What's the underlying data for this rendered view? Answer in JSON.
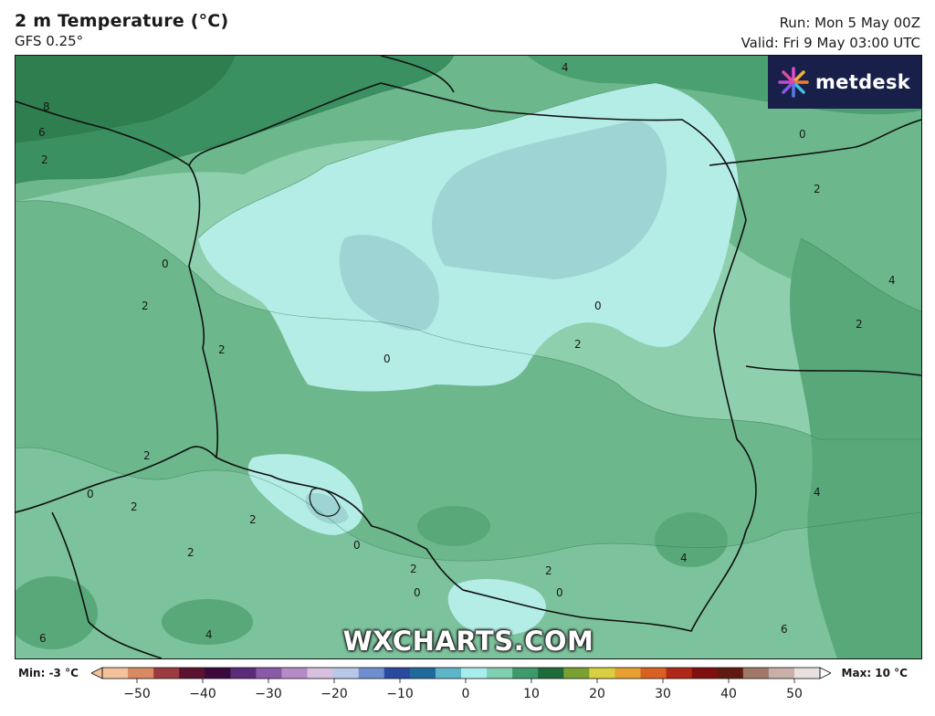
{
  "header": {
    "title": "2 m Temperature (°C)",
    "subtitle": "GFS 0.25°",
    "run": "Run: Mon 5 May 00Z",
    "valid": "Valid: Fri 9 May 03:00 UTC"
  },
  "logo": {
    "text": "metdesk"
  },
  "watermark": "WXCHARTS.COM",
  "contour_labels": [
    "8",
    "6",
    "2",
    "0",
    "2",
    "2",
    "0",
    "2",
    "4",
    "0",
    "2",
    "4",
    "2",
    "0",
    "2",
    "2",
    "4",
    "0",
    "0",
    "2",
    "0",
    "4",
    "6",
    "6",
    "4",
    "2",
    "0",
    "2",
    "2"
  ],
  "colorbar": {
    "min_label": "Min: -3 °C",
    "max_label": "Max: 10 °C",
    "ticks": [
      "−50",
      "−40",
      "−30",
      "−20",
      "−10",
      "0",
      "10",
      "20",
      "30",
      "40",
      "50"
    ],
    "colors": [
      "#f2c29a",
      "#d98a62",
      "#9a3b40",
      "#5a1230",
      "#3a0a3c",
      "#5b2a78",
      "#8a5aa8",
      "#b68cc8",
      "#d8c0e0",
      "#b8c8e8",
      "#6e8ed0",
      "#2a4aa0",
      "#1f6a9a",
      "#5cb6c8",
      "#a8ecec",
      "#7fd0b0",
      "#3e9a6a",
      "#1e6a3a",
      "#7aa030",
      "#d8d040",
      "#e8a030",
      "#d86020",
      "#b02818",
      "#801010",
      "#601a10",
      "#a07868",
      "#c8b0a8",
      "#e8e0dc"
    ]
  }
}
